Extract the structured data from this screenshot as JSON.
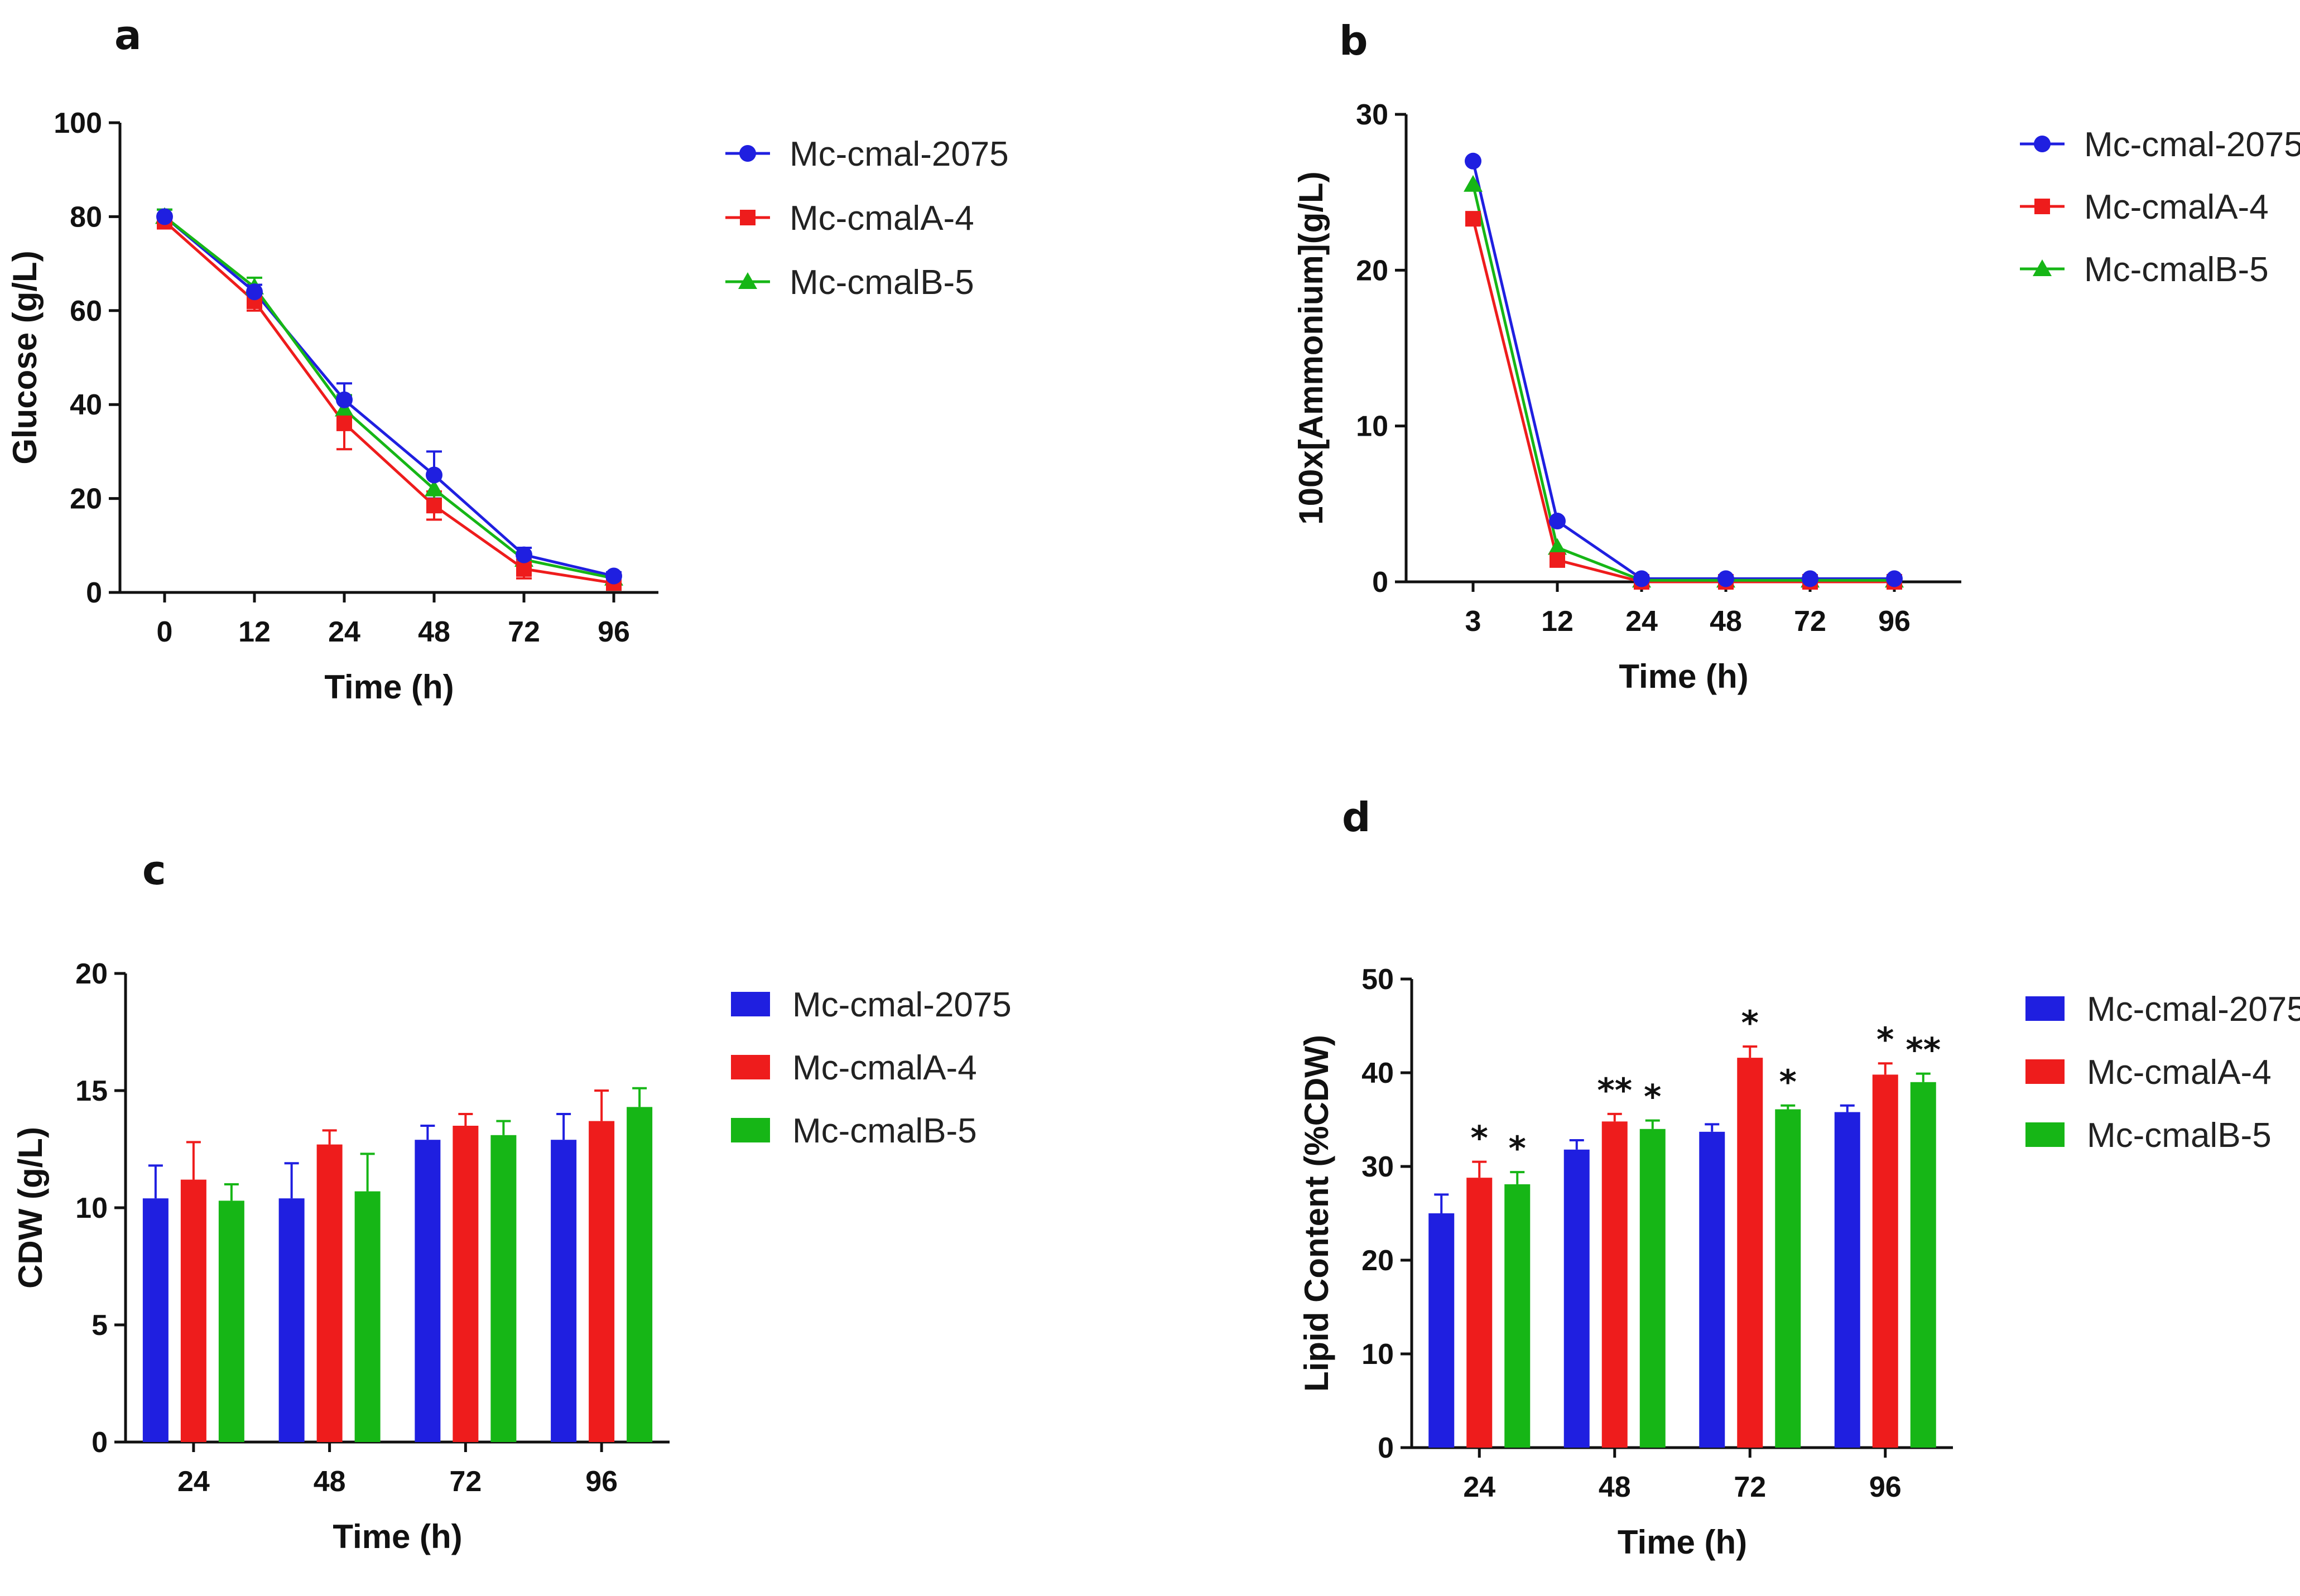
{
  "chart_data": [
    {
      "panel": "a",
      "type": "line",
      "categories": [
        "0",
        "12",
        "24",
        "48",
        "72",
        "96"
      ],
      "xlabel": "Time (h)",
      "ylabel": "Glucose (g/L)",
      "ylim": [
        0,
        100
      ],
      "yticks": [
        "0",
        "20",
        "40",
        "60",
        "80",
        "100"
      ],
      "legend_position": "right",
      "series": [
        {
          "name": "Mc-cmal-2075",
          "color": "#1f1fe0",
          "marker": "circle",
          "values": [
            80,
            64,
            41,
            25,
            8,
            3.5
          ],
          "errors": [
            1.5,
            1.5,
            3.5,
            5,
            1.5,
            0.8
          ]
        },
        {
          "name": "Mc-cmalA-4",
          "color": "#ee1c1c",
          "marker": "square",
          "values": [
            79,
            62,
            36,
            18.5,
            5,
            2
          ],
          "errors": [
            1.5,
            2,
            5.5,
            3,
            2,
            0.5
          ]
        },
        {
          "name": "Mc-cmalB-5",
          "color": "#16b616",
          "marker": "triangle",
          "values": [
            80,
            65,
            39,
            22,
            7,
            3
          ],
          "errors": [
            1.5,
            2,
            3,
            3,
            1.5,
            0.5
          ]
        }
      ]
    },
    {
      "panel": "b",
      "type": "line",
      "categories": [
        "3",
        "12",
        "24",
        "48",
        "72",
        "96"
      ],
      "xlabel": "Time (h)",
      "ylabel": "100x[Ammonium](g/L)",
      "ylim": [
        0,
        30
      ],
      "yticks": [
        "0",
        "10",
        "20",
        "30"
      ],
      "legend_position": "right",
      "series": [
        {
          "name": "Mc-cmal-2075",
          "color": "#1f1fe0",
          "marker": "circle",
          "values": [
            27,
            3.9,
            0.2,
            0.2,
            0.2,
            0.2
          ]
        },
        {
          "name": "Mc-cmalA-4",
          "color": "#ee1c1c",
          "marker": "square",
          "values": [
            23.3,
            1.4,
            0,
            0,
            0,
            0
          ]
        },
        {
          "name": "Mc-cmalB-5",
          "color": "#16b616",
          "marker": "triangle",
          "values": [
            25.5,
            2.2,
            0.1,
            0.1,
            0.1,
            0.1
          ]
        }
      ]
    },
    {
      "panel": "c",
      "type": "bar",
      "categories": [
        "24",
        "48",
        "72",
        "96"
      ],
      "xlabel": "Time (h)",
      "ylabel": "CDW (g/L)",
      "ylim": [
        0,
        20
      ],
      "yticks": [
        "0",
        "5",
        "10",
        "15",
        "20"
      ],
      "legend_position": "right",
      "series": [
        {
          "name": "Mc-cmal-2075",
          "color": "#1f1fe0",
          "values": [
            10.4,
            10.4,
            12.9,
            12.9
          ],
          "errors": [
            1.4,
            1.5,
            0.6,
            1.1
          ]
        },
        {
          "name": "Mc-cmalA-4",
          "color": "#ee1c1c",
          "values": [
            11.2,
            12.7,
            13.5,
            13.7
          ],
          "errors": [
            1.6,
            0.6,
            0.5,
            1.3
          ]
        },
        {
          "name": "Mc-cmalB-5",
          "color": "#16b616",
          "values": [
            10.3,
            10.7,
            13.1,
            14.3
          ],
          "errors": [
            0.7,
            1.6,
            0.6,
            0.8
          ]
        }
      ]
    },
    {
      "panel": "d",
      "type": "bar",
      "categories": [
        "24",
        "48",
        "72",
        "96"
      ],
      "xlabel": "Time (h)",
      "ylabel": "Lipid Content (%CDW)",
      "ylim": [
        0,
        50
      ],
      "yticks": [
        "0",
        "10",
        "20",
        "30",
        "40",
        "50"
      ],
      "legend_position": "right",
      "series": [
        {
          "name": "Mc-cmal-2075",
          "color": "#1f1fe0",
          "values": [
            25,
            31.8,
            33.7,
            35.8
          ],
          "errors": [
            2,
            1,
            0.8,
            0.7
          ],
          "stars": [
            "",
            "",
            "",
            ""
          ]
        },
        {
          "name": "Mc-cmalA-4",
          "color": "#ee1c1c",
          "values": [
            28.8,
            34.8,
            41.6,
            39.8
          ],
          "errors": [
            1.7,
            0.8,
            1.2,
            1.2
          ],
          "stars": [
            "*",
            "**",
            "*",
            "*"
          ]
        },
        {
          "name": "Mc-cmalB-5",
          "color": "#16b616",
          "values": [
            28.1,
            34,
            36.1,
            39
          ],
          "errors": [
            1.3,
            0.9,
            0.4,
            0.9
          ],
          "stars": [
            "*",
            "*",
            "*",
            "**"
          ]
        }
      ]
    }
  ]
}
